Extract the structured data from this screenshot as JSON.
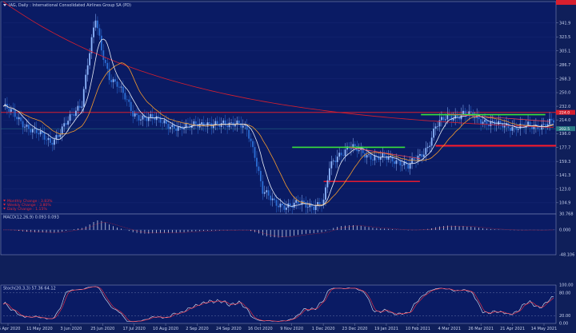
{
  "window": {
    "title": "IAG, Daily : International Consolidated Airlines Group SA (PD)"
  },
  "chart_data": {
    "type": "candlestick",
    "instrument": "IAG",
    "timeframe": "Daily",
    "main": {
      "y_ticks": [
        341.9,
        323.5,
        305.1,
        286.7,
        268.3,
        250.0,
        232.0,
        214.0,
        196.0,
        177.7,
        159.3,
        141.3,
        123.0,
        104.9
      ],
      "ylim": [
        90,
        370
      ],
      "resistance_level": 224,
      "support_levels": [
        180,
        133
      ],
      "price_tags": [
        {
          "value": 224,
          "label": "224.0",
          "color": "#d81f2e"
        },
        {
          "value": 202.5,
          "label": "202.5",
          "color": "#2a7a86"
        }
      ],
      "green_lines": [
        {
          "x1": 0.525,
          "y1": 178,
          "x2": 0.73,
          "y2": 178
        },
        {
          "x1": 0.759,
          "y1": 221,
          "x2": 0.985,
          "y2": 221
        }
      ],
      "changes": [
        {
          "label": "Monthly Change",
          "value": "3.83%"
        },
        {
          "label": "Weekly Change",
          "value": "3.80%"
        },
        {
          "label": "Daily Change",
          "value": "1.15%"
        }
      ]
    },
    "macd": {
      "label": "MACD(12,26,9) 0.093 0.093",
      "y_ticks": [
        30.768,
        0.0,
        -48.106
      ]
    },
    "stoch": {
      "label": "Stoch(20,3,3) 57.36 64.12",
      "y_ticks": [
        100.0,
        80.0,
        20.0,
        0.0
      ]
    },
    "x_ticks": [
      "16 Apr 2020",
      "11 May 2020",
      "3 Jun 2020",
      "25 Jun 2020",
      "17 Jul 2020",
      "10 Aug 2020",
      "2 Sep 2020",
      "24 Sep 2020",
      "16 Oct 2020",
      "9 Nov 2020",
      "1 Dec 2020",
      "23 Dec 2020",
      "19 Jan 2021",
      "10 Feb 2021",
      "4 Mar 2021",
      "26 Mar 2021",
      "21 Apr 2021",
      "14 May 2021"
    ]
  }
}
